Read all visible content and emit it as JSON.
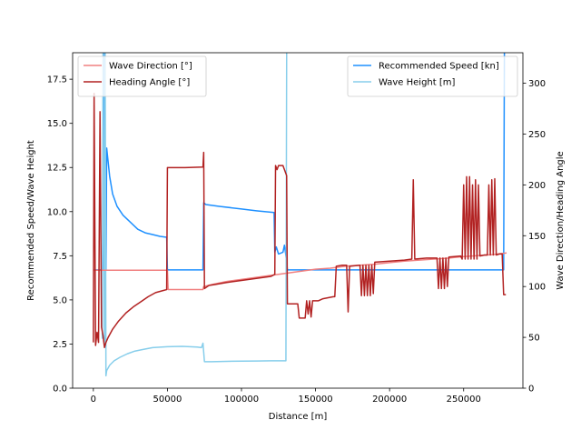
{
  "chart_data": {
    "type": "line",
    "xlabel": "Distance [m]",
    "ylabel_left": "Recommended Speed/Wave Height",
    "ylabel_right": "Wave Direction/Heading Angle",
    "xlim": [
      -14000,
      290000
    ],
    "ylim_left": [
      0,
      19
    ],
    "ylim_right": [
      0,
      330
    ],
    "xticks": [
      0,
      50000,
      100000,
      150000,
      200000,
      250000
    ],
    "xtick_labels": [
      "0",
      "50000",
      "100000",
      "150000",
      "200000",
      "250000"
    ],
    "yticks_left": [
      0,
      2.5,
      5,
      7.5,
      10,
      12.5,
      15,
      17.5
    ],
    "ytick_labels_left": [
      "0.0",
      "2.5",
      "5.0",
      "7.5",
      "10.0",
      "12.5",
      "15.0",
      "17.5"
    ],
    "yticks_right": [
      0,
      50,
      100,
      150,
      200,
      250,
      300
    ],
    "ytick_labels_right": [
      "0",
      "50",
      "100",
      "150",
      "200",
      "250",
      "300"
    ],
    "grid": false,
    "legend_left": {
      "placement": "upper-left",
      "entries": [
        {
          "label": "Wave Direction [°]",
          "color": "#f08080"
        },
        {
          "label": "Heading Angle [°]",
          "color": "#b22222"
        }
      ]
    },
    "legend_right": {
      "placement": "upper-right",
      "entries": [
        {
          "label": "Recommended Speed [kn]",
          "color": "#1e90ff"
        },
        {
          "label": "Wave Height [m]",
          "color": "#87ceeb"
        }
      ]
    },
    "series": [
      {
        "name": "Recommended Speed [kn]",
        "axis": "left",
        "color": "#1e90ff",
        "points": [
          [
            0,
            6.7
          ],
          [
            6500,
            6.7
          ],
          [
            7500,
            19
          ],
          [
            8500,
            6.7
          ],
          [
            9000,
            13.6
          ],
          [
            11000,
            12.0
          ],
          [
            13000,
            11.0
          ],
          [
            16000,
            10.3
          ],
          [
            20000,
            9.8
          ],
          [
            25000,
            9.4
          ],
          [
            30000,
            9.0
          ],
          [
            35000,
            8.8
          ],
          [
            40000,
            8.7
          ],
          [
            45000,
            8.6
          ],
          [
            49500,
            8.55
          ],
          [
            50000,
            6.7
          ],
          [
            74000,
            6.7
          ],
          [
            74500,
            10.5
          ],
          [
            76000,
            10.4
          ],
          [
            85000,
            10.3
          ],
          [
            100000,
            10.15
          ],
          [
            110000,
            10.05
          ],
          [
            122000,
            9.95
          ],
          [
            122500,
            7.7
          ],
          [
            123500,
            8.0
          ],
          [
            125000,
            7.6
          ],
          [
            128000,
            7.7
          ],
          [
            129000,
            8.1
          ],
          [
            130000,
            7.5
          ],
          [
            131000,
            6.7
          ],
          [
            277000,
            6.7
          ],
          [
            277500,
            19
          ]
        ]
      },
      {
        "name": "Wave Height [m]",
        "axis": "left",
        "color": "#87ceeb",
        "points": [
          [
            6000,
            2.8
          ],
          [
            6500,
            19
          ],
          [
            7500,
            2.5
          ],
          [
            8000,
            19
          ],
          [
            8500,
            0.7
          ],
          [
            9000,
            1.0
          ],
          [
            11000,
            1.3
          ],
          [
            14000,
            1.55
          ],
          [
            18000,
            1.75
          ],
          [
            23000,
            1.95
          ],
          [
            28000,
            2.1
          ],
          [
            34000,
            2.2
          ],
          [
            40000,
            2.3
          ],
          [
            50000,
            2.35
          ],
          [
            60000,
            2.37
          ],
          [
            70000,
            2.33
          ],
          [
            73000,
            2.3
          ],
          [
            74000,
            2.55
          ],
          [
            75000,
            1.5
          ],
          [
            80000,
            1.5
          ],
          [
            90000,
            1.52
          ],
          [
            100000,
            1.53
          ],
          [
            110000,
            1.54
          ],
          [
            120000,
            1.55
          ],
          [
            130000,
            1.55
          ],
          [
            130500,
            19
          ]
        ]
      },
      {
        "name": "Wave Direction [°]",
        "axis": "right",
        "color": "#f08080",
        "points": [
          [
            0,
            116
          ],
          [
            50000,
            116
          ],
          [
            50500,
            97
          ],
          [
            74000,
            97
          ],
          [
            74500,
            100
          ],
          [
            80000,
            102
          ],
          [
            90000,
            105
          ],
          [
            100000,
            107
          ],
          [
            110000,
            109
          ],
          [
            120000,
            111
          ],
          [
            130000,
            113
          ],
          [
            140000,
            115
          ],
          [
            150000,
            117
          ],
          [
            160000,
            118
          ],
          [
            170000,
            120
          ],
          [
            180000,
            121
          ],
          [
            190000,
            122
          ],
          [
            200000,
            123.5
          ],
          [
            210000,
            125
          ],
          [
            220000,
            126
          ],
          [
            230000,
            127
          ],
          [
            240000,
            128
          ],
          [
            250000,
            129.5
          ],
          [
            260000,
            130.5
          ],
          [
            270000,
            131.5
          ],
          [
            279000,
            133
          ]
        ]
      },
      {
        "name": "Heading Angle [°]",
        "axis": "right",
        "color": "#b22222",
        "points": [
          [
            0,
            45
          ],
          [
            500,
            290
          ],
          [
            1500,
            42
          ],
          [
            2500,
            55
          ],
          [
            3500,
            45
          ],
          [
            4500,
            272
          ],
          [
            5500,
            60
          ],
          [
            6500,
            52
          ],
          [
            7500,
            40
          ],
          [
            8500,
            45
          ],
          [
            10000,
            50
          ],
          [
            13000,
            58
          ],
          [
            17000,
            66
          ],
          [
            22000,
            74
          ],
          [
            27000,
            80
          ],
          [
            32000,
            85
          ],
          [
            37000,
            90
          ],
          [
            42000,
            94
          ],
          [
            47000,
            96
          ],
          [
            49500,
            97
          ],
          [
            50000,
            217
          ],
          [
            62000,
            217
          ],
          [
            74000,
            217.5
          ],
          [
            74500,
            232
          ],
          [
            75000,
            98
          ],
          [
            76000,
            99
          ],
          [
            78000,
            101
          ],
          [
            82000,
            102
          ],
          [
            90000,
            104
          ],
          [
            100000,
            106
          ],
          [
            110000,
            108
          ],
          [
            120000,
            110
          ],
          [
            122500,
            112
          ],
          [
            123000,
            219
          ],
          [
            124000,
            215
          ],
          [
            125000,
            219
          ],
          [
            128000,
            219
          ],
          [
            130500,
            209
          ],
          [
            131000,
            83
          ],
          [
            136000,
            83
          ],
          [
            138000,
            83
          ],
          [
            139000,
            69
          ],
          [
            143000,
            69
          ],
          [
            144000,
            86
          ],
          [
            145000,
            73
          ],
          [
            146000,
            86
          ],
          [
            147000,
            70
          ],
          [
            148000,
            86
          ],
          [
            152000,
            86
          ],
          [
            155000,
            88
          ],
          [
            162000,
            90
          ],
          [
            163000,
            90
          ],
          [
            164000,
            120
          ],
          [
            168000,
            121
          ],
          [
            171000,
            121
          ],
          [
            172000,
            75
          ],
          [
            173000,
            120
          ],
          [
            180000,
            121
          ],
          [
            181000,
            91
          ],
          [
            182000,
            121
          ],
          [
            183000,
            91
          ],
          [
            184000,
            121
          ],
          [
            185000,
            91
          ],
          [
            186000,
            121
          ],
          [
            187000,
            91
          ],
          [
            188000,
            121
          ],
          [
            189000,
            93
          ],
          [
            190000,
            124
          ],
          [
            200000,
            125
          ],
          [
            210000,
            126
          ],
          [
            215000,
            127
          ],
          [
            216000,
            205
          ],
          [
            217000,
            127
          ],
          [
            225000,
            128
          ],
          [
            232000,
            128
          ],
          [
            233000,
            98
          ],
          [
            234000,
            128
          ],
          [
            235000,
            98
          ],
          [
            236000,
            128
          ],
          [
            237000,
            98
          ],
          [
            238000,
            128
          ],
          [
            239000,
            100
          ],
          [
            240000,
            129
          ],
          [
            248000,
            130
          ],
          [
            249000,
            127
          ],
          [
            250000,
            200
          ],
          [
            251000,
            127
          ],
          [
            252000,
            208
          ],
          [
            253000,
            127
          ],
          [
            254000,
            208
          ],
          [
            255000,
            127
          ],
          [
            256000,
            200
          ],
          [
            257000,
            127
          ],
          [
            258000,
            205
          ],
          [
            259000,
            127
          ],
          [
            260000,
            200
          ],
          [
            261000,
            130
          ],
          [
            264000,
            131
          ],
          [
            266000,
            131
          ],
          [
            267000,
            200
          ],
          [
            268000,
            131
          ],
          [
            269000,
            205
          ],
          [
            270000,
            131
          ],
          [
            271000,
            206
          ],
          [
            272000,
            131
          ],
          [
            274000,
            132
          ],
          [
            276000,
            132
          ],
          [
            277000,
            92
          ],
          [
            278000,
            92
          ],
          [
            278500,
            92
          ]
        ]
      }
    ]
  }
}
